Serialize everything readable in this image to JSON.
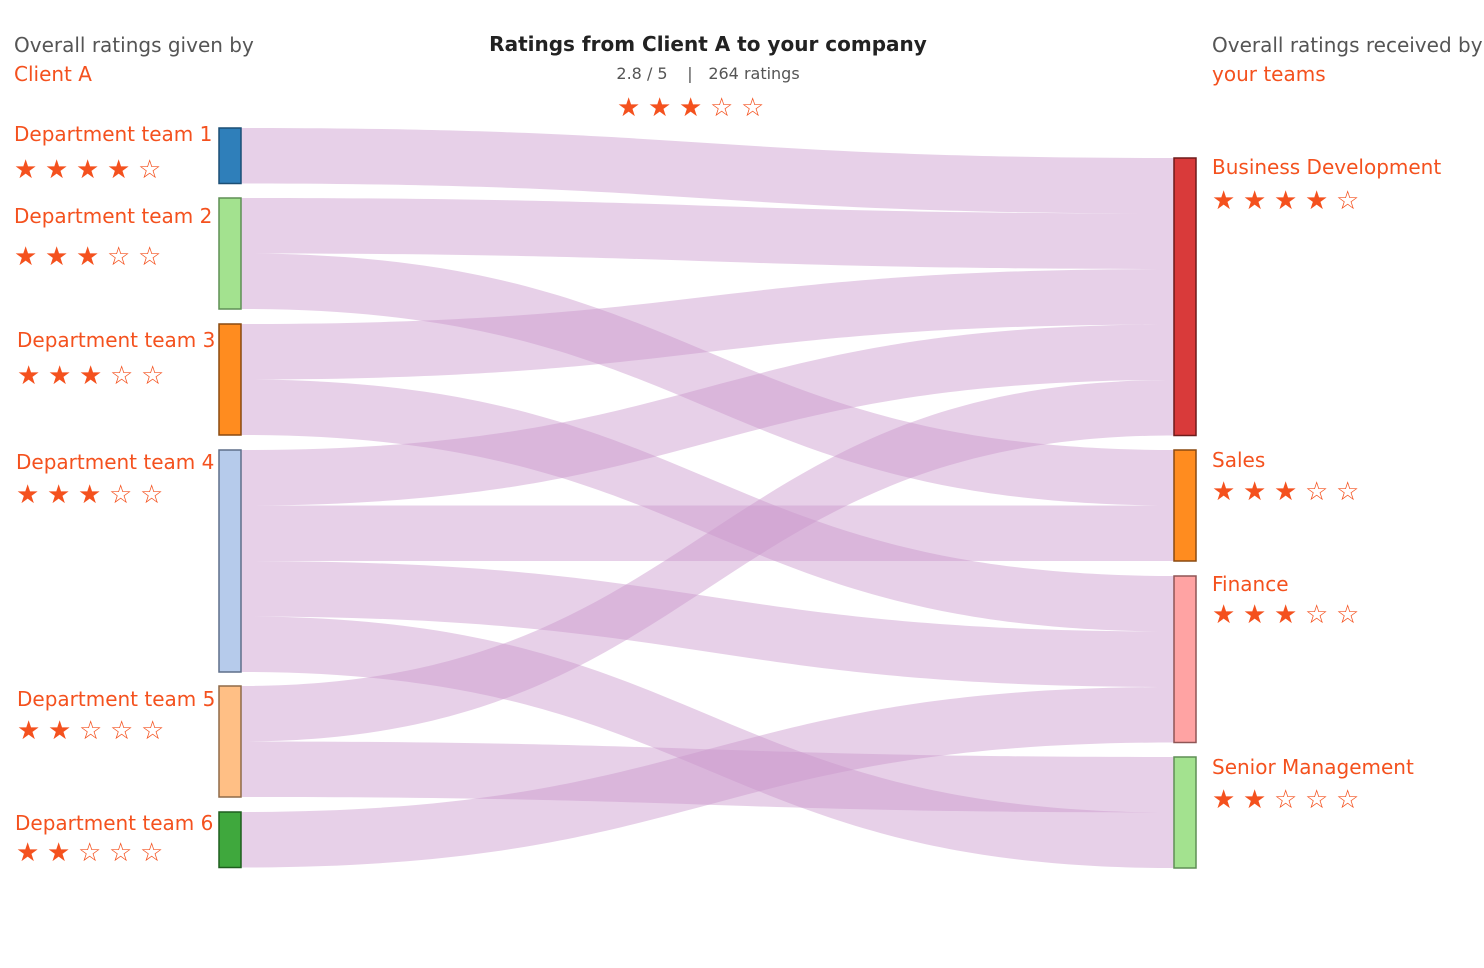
{
  "header": {
    "left_line1": "Overall ratings given by",
    "left_line2": "Client A",
    "right_line1": "Overall ratings received by",
    "right_line2": "your teams",
    "title": "Ratings from Client A to your company",
    "score": "2.8 / 5",
    "separator": "|",
    "count": "264 ratings",
    "stars": 3
  },
  "colors": {
    "accent": "#f4511e",
    "link": "#c996cc"
  },
  "icons": {
    "star_full": "★",
    "star_empty": "☆"
  },
  "sources": [
    {
      "label": "Department team 1",
      "stars": 4,
      "color": "#2f7fba",
      "border": "#1c4f75"
    },
    {
      "label": "Department team 2",
      "stars": 3,
      "color": "#a3e28f",
      "border": "#5f8f55"
    },
    {
      "label": "Department team 3",
      "stars": 3,
      "color": "#ff8c1f",
      "border": "#8a4a10"
    },
    {
      "label": "Department team 4",
      "stars": 3,
      "color": "#b6cbeb",
      "border": "#5e6f8a"
    },
    {
      "label": "Department team 5",
      "stars": 2,
      "color": "#ffbf85",
      "border": "#8f6a48"
    },
    {
      "label": "Department team 6",
      "stars": 2,
      "color": "#3fa83d",
      "border": "#1f5e1e"
    }
  ],
  "targets": [
    {
      "label": "Business Development",
      "stars": 4,
      "color": "#d93a3a",
      "border": "#6e1b1b"
    },
    {
      "label": "Sales",
      "stars": 3,
      "color": "#ff8c1f",
      "border": "#8a4a10"
    },
    {
      "label": "Finance",
      "stars": 3,
      "color": "#ffa3a3",
      "border": "#8f5555"
    },
    {
      "label": "Senior Management",
      "stars": 2,
      "color": "#a3e28f",
      "border": "#5f8f55"
    }
  ],
  "chart_data": {
    "type": "sankey",
    "nodes_left": [
      "Department team 1",
      "Department team 2",
      "Department team 3",
      "Department team 4",
      "Department team 5",
      "Department team 6"
    ],
    "nodes_right": [
      "Business Development",
      "Sales",
      "Finance",
      "Senior Management"
    ],
    "links": [
      {
        "source": "Department team 1",
        "target": "Business Development",
        "value": 1
      },
      {
        "source": "Department team 2",
        "target": "Business Development",
        "value": 1
      },
      {
        "source": "Department team 2",
        "target": "Sales",
        "value": 1
      },
      {
        "source": "Department team 3",
        "target": "Business Development",
        "value": 1
      },
      {
        "source": "Department team 3",
        "target": "Finance",
        "value": 1
      },
      {
        "source": "Department team 4",
        "target": "Business Development",
        "value": 1
      },
      {
        "source": "Department team 4",
        "target": "Sales",
        "value": 1
      },
      {
        "source": "Department team 4",
        "target": "Finance",
        "value": 1
      },
      {
        "source": "Department team 4",
        "target": "Senior Management",
        "value": 1
      },
      {
        "source": "Department team 5",
        "target": "Business Development",
        "value": 1
      },
      {
        "source": "Department team 5",
        "target": "Senior Management",
        "value": 1
      },
      {
        "source": "Department team 6",
        "target": "Finance",
        "value": 1
      }
    ]
  }
}
